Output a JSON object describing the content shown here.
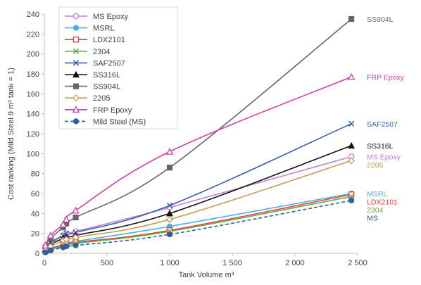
{
  "chart_data": {
    "type": "line",
    "xlabel": "Tank Volume m³",
    "ylabel": "Cost ranking (Mild Steel 9 m³ tank = 1)",
    "xlim": [
      0,
      2500
    ],
    "ylim": [
      0,
      240
    ],
    "xticks": [
      0,
      500,
      1000,
      1500,
      2000,
      2500
    ],
    "xtick_labels": [
      "0",
      "500",
      "1 000",
      "1 500",
      "2 000",
      "2 500"
    ],
    "yticks": [
      0,
      20,
      40,
      60,
      80,
      100,
      120,
      140,
      160,
      180,
      200,
      220,
      240
    ],
    "grid": false,
    "legend_position": "top-left",
    "x": [
      9,
      50,
      150,
      175,
      250,
      1000,
      2450
    ],
    "series": [
      {
        "name": "MS Epoxy",
        "color": "#c27fd6",
        "marker": "circle-open",
        "dashed": false,
        "end_label": "MS Epoxy",
        "values": [
          4,
          10,
          18,
          20,
          22,
          46,
          97
        ]
      },
      {
        "name": "MSRL",
        "color": "#4ab0e4",
        "marker": "circle",
        "dashed": false,
        "end_label": "MSRL",
        "values": [
          2,
          5,
          9,
          10,
          12,
          27,
          60
        ]
      },
      {
        "name": "LDX2101",
        "color": "#e0423c",
        "marker": "square-open",
        "dashed": false,
        "end_label": "LDX2101",
        "values": [
          2,
          4,
          8,
          9,
          11,
          23,
          59
        ]
      },
      {
        "name": "2304",
        "color": "#6da84b",
        "marker": "x",
        "dashed": false,
        "end_label": "2304",
        "values": [
          2,
          4,
          7,
          8,
          10,
          22,
          57
        ]
      },
      {
        "name": "SAF2507",
        "color": "#3e5fa8",
        "marker": "x",
        "dashed": false,
        "end_label": "SAF2507",
        "values": [
          5,
          11,
          18,
          20,
          21,
          48,
          130
        ]
      },
      {
        "name": "SS316L",
        "color": "#111111",
        "marker": "triangle",
        "dashed": false,
        "end_label": "SS316L",
        "values": [
          4,
          9,
          15,
          16,
          18,
          40,
          108
        ]
      },
      {
        "name": "SS904L",
        "color": "#666666",
        "marker": "square",
        "dashed": false,
        "end_label": "SS904L",
        "values": [
          6,
          15,
          26,
          30,
          36,
          86,
          235
        ]
      },
      {
        "name": "2205",
        "color": "#c89a52",
        "marker": "diamond-open",
        "dashed": false,
        "end_label": "2205",
        "values": [
          3,
          7,
          13,
          14,
          16,
          34,
          93
        ]
      },
      {
        "name": "FRP Epoxy",
        "color": "#cc3fa6",
        "marker": "triangle-open",
        "dashed": false,
        "end_label": "FRP Epoxy",
        "values": [
          8,
          18,
          29,
          34,
          43,
          102,
          177
        ]
      },
      {
        "name": "Mild Steel (MS)",
        "color": "#2e5ea0",
        "marker": "circle",
        "dashed": true,
        "end_label": "MS",
        "values": [
          1,
          3,
          6,
          7,
          8,
          19,
          53
        ]
      }
    ]
  }
}
